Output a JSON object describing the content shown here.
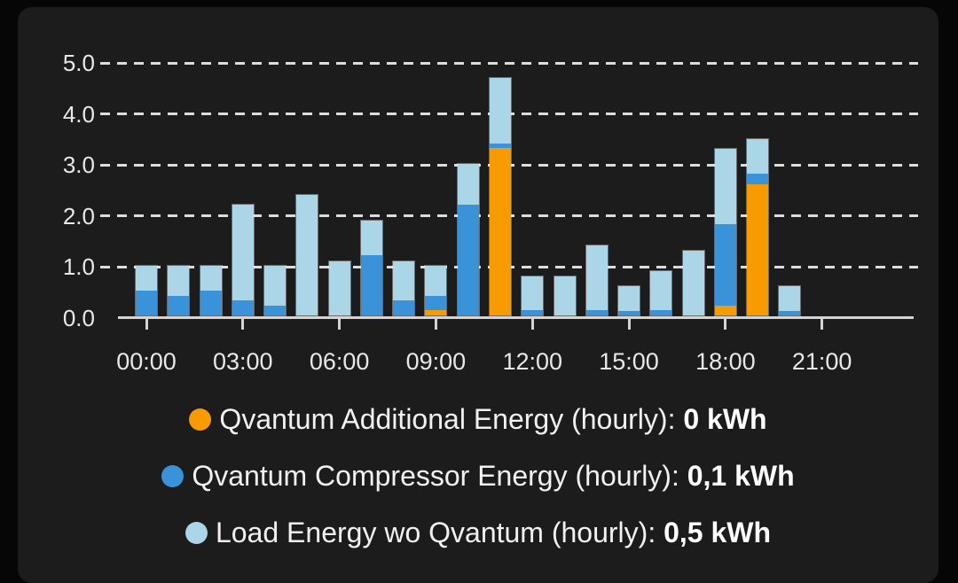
{
  "card": {
    "name": "energy-history-card"
  },
  "chart_data": {
    "type": "bar",
    "stacked": true,
    "title": "",
    "xlabel": "",
    "ylabel": "",
    "categories": [
      "00:00",
      "01:00",
      "02:00",
      "03:00",
      "04:00",
      "05:00",
      "06:00",
      "07:00",
      "08:00",
      "09:00",
      "10:00",
      "11:00",
      "12:00",
      "13:00",
      "14:00",
      "15:00",
      "16:00",
      "17:00",
      "18:00",
      "19:00",
      "20:00",
      "21:00",
      "22:00",
      "23:00"
    ],
    "series": [
      {
        "name": "Qvantum Additional Energy (hourly)",
        "color": "#f89b00",
        "values": [
          0,
          0,
          0,
          0,
          0,
          0,
          0,
          0,
          0,
          0.1,
          0,
          3.3,
          0,
          0,
          0,
          0,
          0,
          0,
          0.2,
          2.6,
          0,
          0,
          0,
          0
        ]
      },
      {
        "name": "Qvantum Compressor Energy (hourly)",
        "color": "#3a93d8",
        "values": [
          0.5,
          0.4,
          0.5,
          0.3,
          0.2,
          0,
          0,
          1.2,
          0.3,
          0.3,
          2.2,
          0.1,
          0.1,
          0,
          0.1,
          0.1,
          0.1,
          0,
          1.6,
          0.2,
          0.1,
          0,
          0,
          0
        ]
      },
      {
        "name": "Load Energy wo Qvantum (hourly)",
        "color": "#aad6e8",
        "values": [
          0.5,
          0.6,
          0.5,
          1.9,
          0.8,
          2.4,
          1.1,
          0.7,
          0.8,
          0.6,
          0.8,
          1.3,
          0.7,
          0.8,
          1.3,
          0.5,
          0.8,
          1.3,
          1.5,
          0.7,
          0.5,
          0,
          0,
          0
        ]
      }
    ],
    "stack_order": "bottom-to-top: Additional (orange), Compressor (blue), Load (light blue)",
    "ylim": [
      0,
      5.2
    ],
    "y_ticks": [
      0,
      1,
      2,
      3,
      4,
      5
    ],
    "y_tick_labels": [
      "0.0",
      "1.0",
      "2.0",
      "3.0",
      "4.0",
      "5.0"
    ],
    "x_tick_hours": [
      0,
      3,
      6,
      9,
      12,
      15,
      18,
      21
    ],
    "x_tick_labels": [
      "00:00",
      "03:00",
      "06:00",
      "09:00",
      "12:00",
      "15:00",
      "18:00",
      "21:00"
    ],
    "grid": "horizontal dashed",
    "legend_position": "bottom"
  },
  "legend": {
    "items": [
      {
        "label": "Qvantum Additional Energy (hourly): ",
        "value": "0 kWh",
        "color": "#f89b00"
      },
      {
        "label": "Qvantum Compressor Energy (hourly): ",
        "value": "0,1 kWh",
        "color": "#3a93d8"
      },
      {
        "label": "Load Energy wo Qvantum (hourly): ",
        "value": "0,5 kWh",
        "color": "#aad6e8"
      }
    ]
  },
  "colors": {
    "page_bg": "#060606",
    "card_bg": "#1c1c1c",
    "gridline": "#dcdcdc",
    "axis": "#d4d4d4",
    "tick_label": "#e8e8e8",
    "legend_text": "#f1f1f1"
  }
}
